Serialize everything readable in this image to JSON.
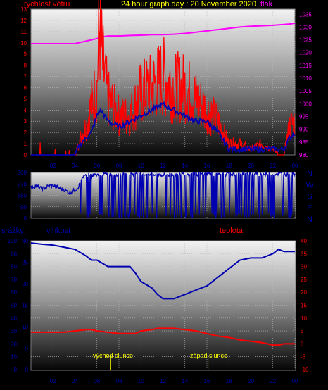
{
  "header": {
    "left_label": "rychlost větru",
    "title": "24 hour graph day : 20 November 2020",
    "right_label": "tlak"
  },
  "colors": {
    "wind": "#ff0000",
    "pressure": "#ff00ff",
    "blue_series": "#0000b0",
    "title": "#ffff00",
    "left_axis_text": "#ff0000",
    "right_axis_text": "#ff00ff",
    "direction_text": "#0000b0"
  },
  "x_ticks": [
    "02",
    "04",
    "06",
    "08",
    "10",
    "12",
    "14",
    "16",
    "18",
    "20",
    "22",
    "00"
  ],
  "bottom_labels": {
    "rain": "srážky",
    "humidity": "vlhkost",
    "temperature": "teplota",
    "sunrise": "východ slunce",
    "sunset": "západ slunce"
  },
  "chart_data": [
    {
      "type": "line",
      "panel": "wind_pressure",
      "x": [
        0,
        1,
        2,
        3,
        4,
        4.5,
        5,
        5.5,
        6,
        6.25,
        6.5,
        7,
        8,
        9,
        10,
        11,
        12,
        13,
        14,
        15,
        16,
        17,
        18,
        19,
        20,
        21,
        22,
        23,
        23.5,
        24
      ],
      "series": [
        {
          "name": "rychlost větru",
          "axis": "left",
          "values": [
            0,
            0,
            0,
            0,
            0,
            1.5,
            2.5,
            4.5,
            6,
            12,
            8,
            5,
            3.5,
            3.5,
            5.5,
            6,
            7,
            6,
            6,
            5,
            4,
            3,
            1,
            1,
            0.5,
            1,
            0.5,
            0,
            2.5,
            3
          ]
        },
        {
          "name": "tlak",
          "axis": "right",
          "values": [
            1023.5,
            1023.5,
            1023.5,
            1023.5,
            1023.5,
            1024,
            1024.5,
            1025,
            1025.5,
            1026,
            1026.2,
            1026.5,
            1026.5,
            1026.7,
            1026.8,
            1027,
            1027,
            1027.2,
            1027.5,
            1028,
            1028.5,
            1029,
            1029.5,
            1030,
            1030.3,
            1030.5,
            1030.7,
            1031,
            1031.2,
            1031.5
          ]
        },
        {
          "axis": "left",
          "values": [
            0,
            0,
            0,
            0,
            0,
            1,
            1.5,
            2,
            3.5,
            4,
            3.8,
            3,
            2.5,
            3,
            3.5,
            4,
            4.5,
            4,
            3.5,
            3,
            3,
            2,
            0.5,
            0.5,
            0.5,
            0.5,
            0.5,
            0.5,
            1.5,
            2
          ]
        }
      ],
      "ylim_left": [
        0,
        13
      ],
      "ylim_right": [
        980,
        1037
      ],
      "yticks_left": [
        0,
        1,
        2,
        3,
        4,
        5,
        6,
        7,
        8,
        9,
        10,
        11,
        12,
        13
      ],
      "yticks_right": [
        980,
        985,
        990,
        995,
        1000,
        1005,
        1010,
        1015,
        1020,
        1025,
        1030,
        1035
      ]
    },
    {
      "type": "line",
      "panel": "wind_direction",
      "x": [
        0,
        0.5,
        1,
        1.5,
        2,
        2.5,
        3,
        3.5,
        4,
        4.3,
        4.6,
        5,
        5.5,
        6,
        6.5,
        7,
        8,
        9,
        10,
        11,
        12,
        13,
        14,
        15,
        16,
        17,
        18,
        19,
        20,
        21,
        22,
        23,
        24
      ],
      "series": [
        {
          "values": [
            245,
            255,
            230,
            250,
            260,
            240,
            225,
            200,
            220,
            245,
            300,
            340,
            335,
            345,
            350,
            345,
            340,
            350,
            345,
            350,
            340,
            345,
            350,
            345,
            350,
            345,
            350,
            345,
            350,
            345,
            350,
            350,
            350
          ]
        }
      ],
      "ylim": [
        0,
        360
      ],
      "yticks": [
        0,
        90,
        180,
        270,
        360
      ],
      "right_labels": [
        "N",
        "W",
        "S",
        "E",
        "N"
      ]
    },
    {
      "type": "line",
      "panel": "humidity_temperature",
      "x": [
        0,
        1,
        2,
        3,
        4,
        5,
        5.5,
        6,
        7,
        8,
        9,
        9.5,
        10,
        11,
        11.5,
        12,
        13,
        14,
        15,
        16,
        17,
        18,
        19,
        20,
        21,
        22,
        22.5,
        23,
        24
      ],
      "series": [
        {
          "name": "vlhkost",
          "axis": "left_inner",
          "values": [
            29.5,
            29.2,
            29,
            28.5,
            28,
            26.5,
            25.5,
            25.5,
            24,
            24,
            24,
            22.5,
            20.5,
            19,
            17.5,
            16.5,
            16.5,
            17.5,
            18.5,
            19.5,
            21.5,
            23.5,
            25.5,
            26,
            26,
            27,
            28,
            27.5,
            27.5
          ]
        },
        {
          "name": "teplota",
          "axis": "right",
          "values": [
            4.5,
            4.5,
            4.5,
            4.5,
            5,
            5.5,
            5.5,
            5,
            4.5,
            4,
            4,
            4,
            5,
            5.5,
            6,
            6,
            6,
            5.5,
            5,
            4,
            3,
            2.5,
            1.5,
            1,
            0.5,
            -0.5,
            -0.5,
            0,
            0
          ]
        }
      ],
      "ylim_outer_left": [
        0,
        100
      ],
      "ylim_left": [
        0,
        30
      ],
      "ylim_right": [
        -10,
        40
      ],
      "yticks_outer_left": [
        0,
        10,
        20,
        30,
        40,
        50,
        60,
        70,
        80,
        90,
        100
      ],
      "yticks_left": [
        0,
        5,
        10,
        15,
        20,
        25,
        30
      ],
      "yticks_right": [
        -10,
        -5,
        0,
        5,
        10,
        15,
        20,
        25,
        30,
        35,
        40
      ],
      "markers": [
        {
          "label": "východ slunce",
          "x": 7.2
        },
        {
          "label": "západ slunce",
          "x": 16.1
        }
      ]
    }
  ]
}
